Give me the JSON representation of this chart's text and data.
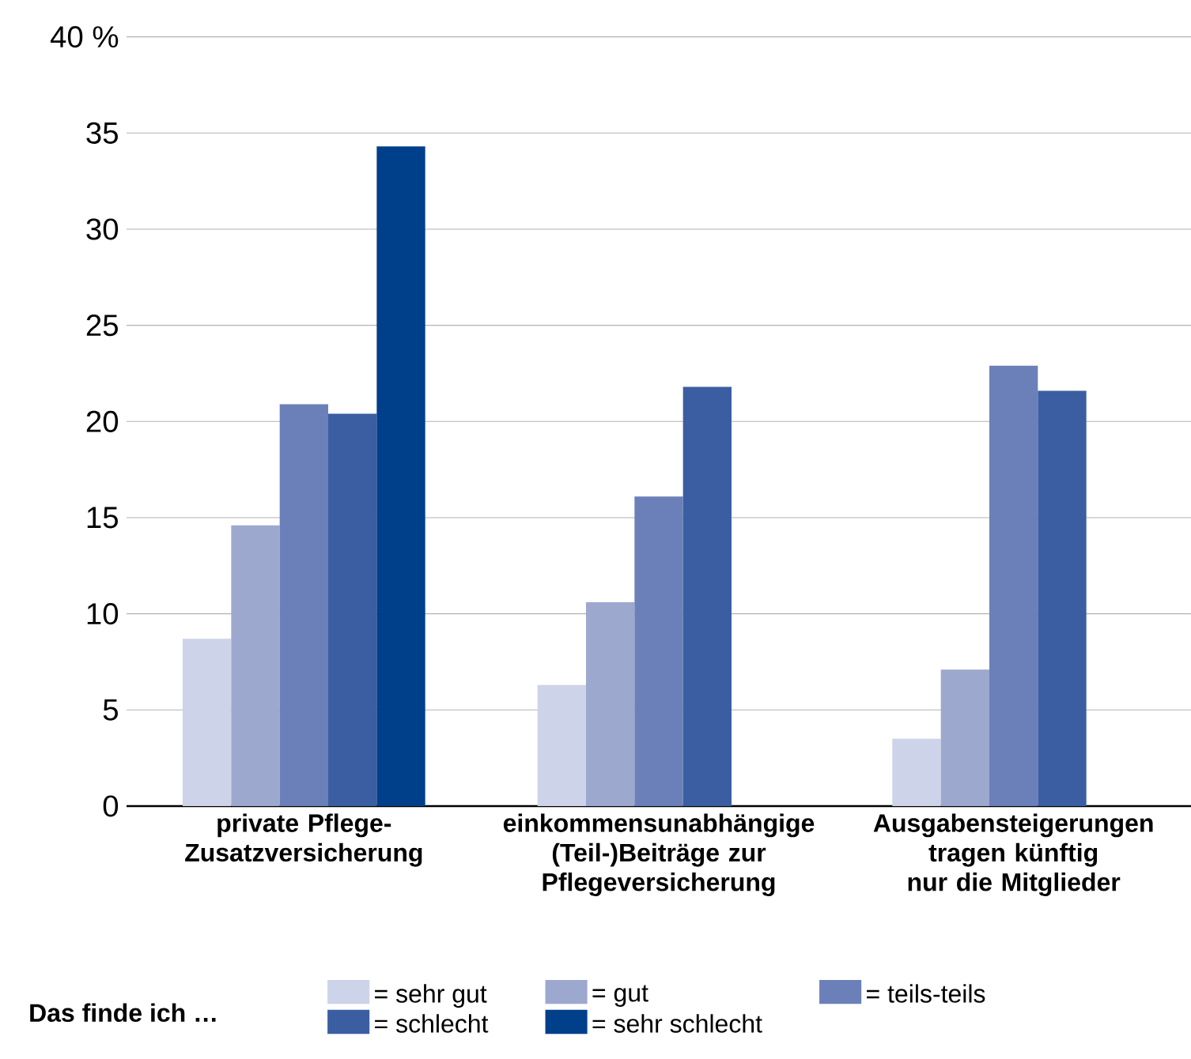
{
  "chart_data": {
    "type": "bar",
    "categories": [
      "private Pflege-Zusatzversicherung",
      "einkommensunabhängige (Teil-)Beiträge zur Pflegeversicherung",
      "Ausgabensteigerungen tragen künftig nur die Mitglieder"
    ],
    "series": [
      {
        "name": "= sehr gut",
        "color": "#cdd3e8",
        "values": [
          8.7,
          6.3,
          3.5
        ]
      },
      {
        "name": "= gut",
        "color": "#9da8cf",
        "values": [
          14.6,
          10.6,
          7.1
        ]
      },
      {
        "name": "= teils-teils",
        "color": "#6b80b8",
        "values": [
          20.9,
          16.1,
          22.9
        ]
      },
      {
        "name": "= schlecht",
        "color": "#3a5ea1",
        "values": [
          20.4,
          21.8,
          21.6
        ]
      },
      {
        "name": "= sehr schlecht",
        "color": "#003f8a",
        "values": [
          34.3,
          null,
          null
        ]
      }
    ],
    "ylim": [
      0,
      40
    ],
    "yticks": [
      0,
      5,
      10,
      15,
      20,
      25,
      30,
      35,
      {
        "value": 40,
        "label": "40 %"
      }
    ],
    "grid": "y",
    "legend": "bottom",
    "legend_title": "Das finde ich …"
  }
}
